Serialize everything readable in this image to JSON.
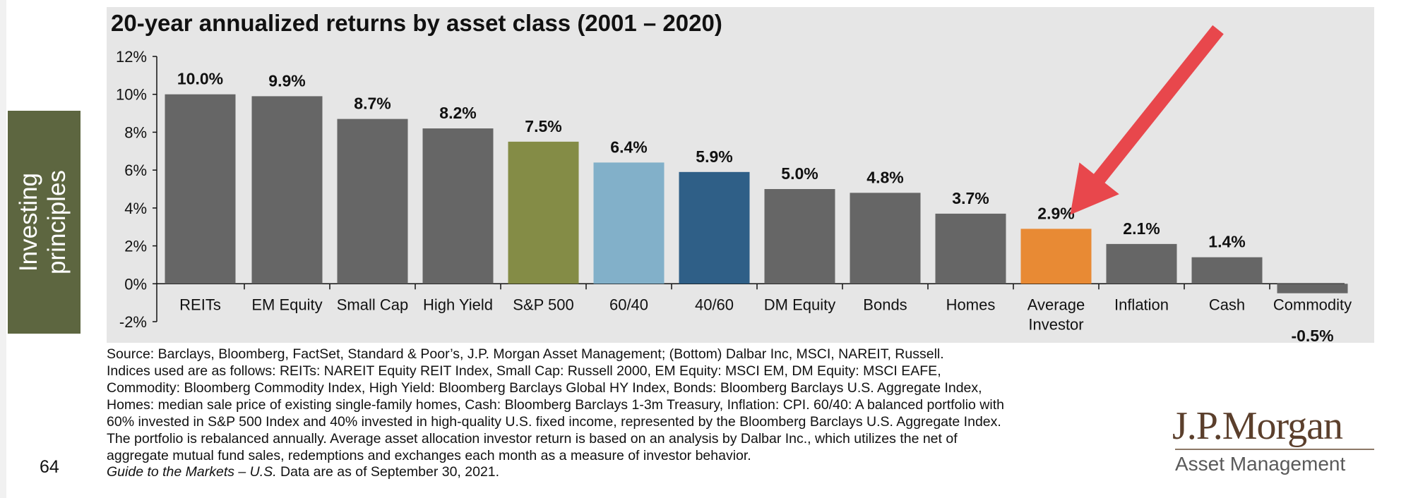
{
  "side_tab": {
    "label": "Investing\nprinciples"
  },
  "chart_data": {
    "type": "bar",
    "title": "20-year annualized returns by asset class (2001 – 2020)",
    "categories": [
      "REITs",
      "EM Equity",
      "Small Cap",
      "High Yield",
      "S&P 500",
      "60/40",
      "40/60",
      "DM Equity",
      "Bonds",
      "Homes",
      "Average\nInvestor",
      "Inflation",
      "Cash",
      "Commodity"
    ],
    "values": [
      10.0,
      9.9,
      8.7,
      8.2,
      7.5,
      6.4,
      5.9,
      5.0,
      4.8,
      3.7,
      2.9,
      2.1,
      1.4,
      -0.5
    ],
    "data_labels": [
      "10.0%",
      "9.9%",
      "8.7%",
      "8.2%",
      "7.5%",
      "6.4%",
      "5.9%",
      "5.0%",
      "4.8%",
      "3.7%",
      "2.9%",
      "2.1%",
      "1.4%",
      "-0.5%"
    ],
    "colors": [
      "#666666",
      "#666666",
      "#666666",
      "#666666",
      "#848c46",
      "#82b0c9",
      "#2f5f87",
      "#666666",
      "#666666",
      "#666666",
      "#e88a34",
      "#666666",
      "#666666",
      "#666666"
    ],
    "ylim": [
      -2,
      12
    ],
    "yticks": [
      12,
      10,
      8,
      6,
      4,
      2,
      0,
      -2
    ],
    "ytick_labels": [
      "12%",
      "10%",
      "8%",
      "6%",
      "4%",
      "2%",
      "0%",
      "-2%"
    ],
    "xlabel": "",
    "ylabel": "",
    "grid": false,
    "legend": "none",
    "annotation": {
      "type": "arrow",
      "points_to": "Average\nInvestor",
      "color": "#e8474c"
    }
  },
  "footnotes": [
    "Source: Barclays, Bloomberg, FactSet, Standard & Poor’s, J.P. Morgan Asset Management; (Bottom) Dalbar Inc, MSCI, NAREIT, Russell.",
    "Indices used are as follows: REITs: NAREIT Equity REIT Index, Small Cap: Russell 2000, EM Equity: MSCI EM, DM Equity: MSCI EAFE,",
    "Commodity: Bloomberg Commodity Index, High Yield: Bloomberg Barclays Global HY Index, Bonds: Bloomberg Barclays U.S. Aggregate Index,",
    "Homes: median sale price of existing single-family homes, Cash: Bloomberg Barclays 1-3m Treasury, Inflation: CPI. 60/40: A balanced portfolio with",
    "60% invested in S&P 500 Index and 40% invested in high-quality U.S. fixed income, represented by the Bloomberg Barclays U.S. Aggregate Index.",
    "The portfolio is rebalanced annually. Average asset allocation investor return is based on an analysis by Dalbar Inc., which utilizes the net of",
    "aggregate mutual fund sales, redemptions and exchanges each month as a measure of investor behavior."
  ],
  "guide": {
    "italic": "Guide to the Markets – U.S.",
    "rest": " Data are as of September 30, 2021."
  },
  "page_number": "64",
  "logo": {
    "wordmark": "J.P.Morgan",
    "subtitle": "Asset Management"
  }
}
